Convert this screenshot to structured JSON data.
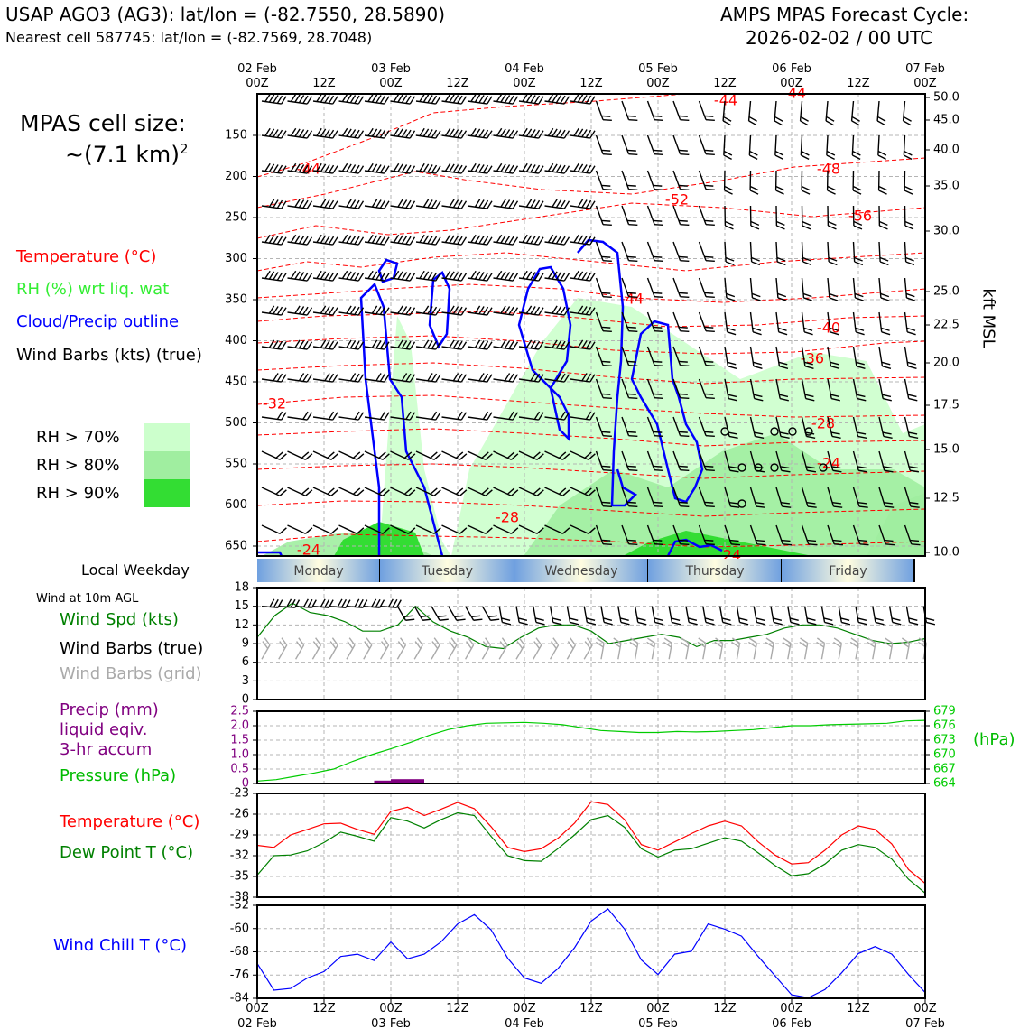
{
  "header": {
    "station": "USAP AGO3 (AG3): lat/lon = (-82.7550, 28.5890)",
    "nearest": "Nearest cell 587745: lat/lon = (-82.7569, 28.7048)",
    "model": "AMPS MPAS Forecast Cycle:",
    "cycle": "2026-02-02 / 00 UTC"
  },
  "legend": {
    "cell_size_label": "MPAS cell size:",
    "cell_size_value": "~(7.1 km)",
    "cell_size_exp": "2",
    "temperature": "Temperature (°C)",
    "rh": "RH (%) wrt liq. wat",
    "cloud": "Cloud/Precip outline",
    "barbs": "Wind Barbs (kts) (true)",
    "rh70": "RH > 70%",
    "rh80": "RH > 80%",
    "rh90": "RH > 90%",
    "local_weekday": "Local Weekday",
    "wind10m": "Wind at 10m AGL",
    "wind_spd": "Wind Spd (kts)",
    "wind_barbs_true": "Wind Barbs (true)",
    "wind_barbs_grid": "Wind Barbs (grid)",
    "precip1": "Precip (mm)",
    "precip2": "liquid eqiv.",
    "precip3": "3-hr accum",
    "pressure": "Pressure (hPa)",
    "pressure_unit": "(hPa)",
    "temp2": "Temperature (°C)",
    "dewpoint": "Dew Point T (°C)",
    "windchill": "Wind Chill T (°C)",
    "kft": "kft MSL"
  },
  "colors": {
    "temp": "#ff0000",
    "rh": "#33ee33",
    "cloud": "#0000ff",
    "wind": "#008000",
    "precip": "#800080",
    "pressure": "#00cc00",
    "dew": "#008000",
    "chill": "#0000ff",
    "rh70": "#ccffcc",
    "rh80": "#a0eea0",
    "rh90": "#33dd33",
    "grid": "#b4b4b4"
  },
  "chart_data": {
    "type": "meteogram",
    "time_axis": {
      "top_dates": [
        "02 Feb",
        "",
        "03 Feb",
        "",
        "04 Feb",
        "",
        "05 Feb",
        "",
        "06 Feb",
        "",
        "07 Feb"
      ],
      "hours": [
        "00Z",
        "12Z",
        "00Z",
        "12Z",
        "00Z",
        "12Z",
        "00Z",
        "12Z",
        "00Z",
        "12Z",
        "00Z"
      ],
      "bottom_dates": [
        "02 Feb",
        "",
        "03 Feb",
        "",
        "04 Feb",
        "",
        "05 Feb",
        "",
        "06 Feb",
        "",
        "07 Feb"
      ],
      "range_hours": [
        0,
        120
      ]
    },
    "weekdays": [
      "Monday",
      "Tuesday",
      "Wednesday",
      "Thursday",
      "Friday"
    ],
    "cross_section": {
      "pressure_ticks": [
        "150",
        "200",
        "250",
        "300",
        "350",
        "400",
        "450",
        "500",
        "550",
        "600",
        "650"
      ],
      "kft_ticks": [
        "50.0",
        "45.0",
        "40.0",
        "35.0",
        "30.0",
        "25.0",
        "22.5",
        "20.0",
        "17.5",
        "15.0",
        "12.5",
        "10.0"
      ],
      "temp_labels": [
        "-44",
        "-48",
        "-52",
        "-56",
        "-44",
        "-40",
        "-36",
        "-32",
        "-28",
        "-24",
        "-28",
        "-24",
        "-24",
        "-44",
        "-44"
      ]
    },
    "wind": {
      "ylim": [
        0,
        18
      ],
      "ticks": [
        "18",
        "15",
        "12",
        "9",
        "6",
        "3",
        "0"
      ],
      "speed": [
        10,
        13.5,
        15.5,
        14,
        13.5,
        12.5,
        11,
        11,
        12,
        15,
        12.5,
        11,
        10,
        8.5,
        8.2,
        10,
        11.5,
        12,
        12,
        11,
        9,
        9.5,
        10,
        10.5,
        10,
        8.5,
        9.5,
        9.5,
        10,
        10.5,
        11.5,
        12,
        12,
        11.5,
        10.5,
        9.5,
        9,
        9.2,
        9.8
      ]
    },
    "precip_pressure": {
      "precip_ticks": [
        "2.5",
        "2.0",
        "1.5",
        "1.0",
        "0.5",
        "0"
      ],
      "pressure_ticks": [
        "679",
        "676",
        "673",
        "670",
        "667",
        "664"
      ],
      "precip_ylim": [
        0,
        2.5
      ],
      "pressure_ylim": [
        664,
        679
      ],
      "precip": [
        0,
        0,
        0,
        0,
        0,
        0,
        0,
        0.1,
        0.15,
        0.15,
        0,
        0,
        0,
        0,
        0,
        0,
        0,
        0,
        0,
        0,
        0,
        0,
        0,
        0,
        0,
        0,
        0,
        0,
        0,
        0,
        0,
        0,
        0,
        0,
        0,
        0,
        0,
        0,
        0,
        0
      ],
      "pressure": [
        664.5,
        664.8,
        665.5,
        666.2,
        667,
        668.6,
        670,
        671.2,
        672.5,
        674,
        675.2,
        676,
        676.5,
        676.6,
        676.7,
        676.5,
        676.2,
        675.6,
        675,
        674.8,
        674.6,
        674.6,
        674.8,
        674.7,
        674.8,
        675,
        675.2,
        675.6,
        676,
        676,
        676.2,
        676.3,
        676.4,
        676.5,
        677,
        677.1
      ]
    },
    "temperature": {
      "ylim": [
        -38,
        -23
      ],
      "ticks": [
        "-23",
        "-26",
        "-29",
        "-32",
        "-35",
        "-38"
      ],
      "temp": [
        -30.5,
        -30.8,
        -29,
        -28.2,
        -27.4,
        -27.3,
        -28.2,
        -28.9,
        -25.6,
        -25,
        -26.2,
        -25.3,
        -24.3,
        -25.2,
        -27.8,
        -30.8,
        -31.4,
        -31,
        -29.5,
        -27.3,
        -24.2,
        -24.6,
        -26.8,
        -30.4,
        -31.2,
        -30,
        -28.8,
        -27.7,
        -27,
        -27.7,
        -30,
        -31.9,
        -33.2,
        -33,
        -31.2,
        -29,
        -27.7,
        -28.2,
        -30.3,
        -34,
        -36
      ],
      "dew": [
        -34.8,
        -32,
        -31.9,
        -31.3,
        -30.1,
        -28.6,
        -29.2,
        -29.9,
        -26.5,
        -27,
        -28,
        -26.8,
        -25.8,
        -26.2,
        -29.2,
        -32,
        -32.7,
        -32.8,
        -31,
        -29,
        -26.8,
        -26.2,
        -27.9,
        -31,
        -32.2,
        -31.2,
        -31,
        -30.2,
        -29.4,
        -29.9,
        -31.6,
        -33.4,
        -34.9,
        -34.6,
        -33.2,
        -31.2,
        -30.4,
        -30.8,
        -32.5,
        -35.4,
        -37.4
      ]
    },
    "windchill": {
      "ylim": [
        -84,
        -52
      ],
      "ticks": [
        "-52",
        "-60",
        "-68",
        "-76",
        "-84"
      ],
      "values": [
        -72,
        -81.2,
        -80.6,
        -77,
        -74.8,
        -69.6,
        -68.8,
        -71,
        -64.6,
        -70.4,
        -68.8,
        -64.6,
        -58.4,
        -55.2,
        -60.4,
        -70.2,
        -77,
        -78.8,
        -73.8,
        -66.6,
        -57.4,
        -53.2,
        -60.2,
        -70.8,
        -75.8,
        -68.8,
        -67.8,
        -58.4,
        -60.2,
        -62.6,
        -69.6,
        -76.2,
        -82.8,
        -83.8,
        -81,
        -75.2,
        -68.6,
        -66.2,
        -68.8,
        -75.8,
        -82
      ]
    }
  }
}
